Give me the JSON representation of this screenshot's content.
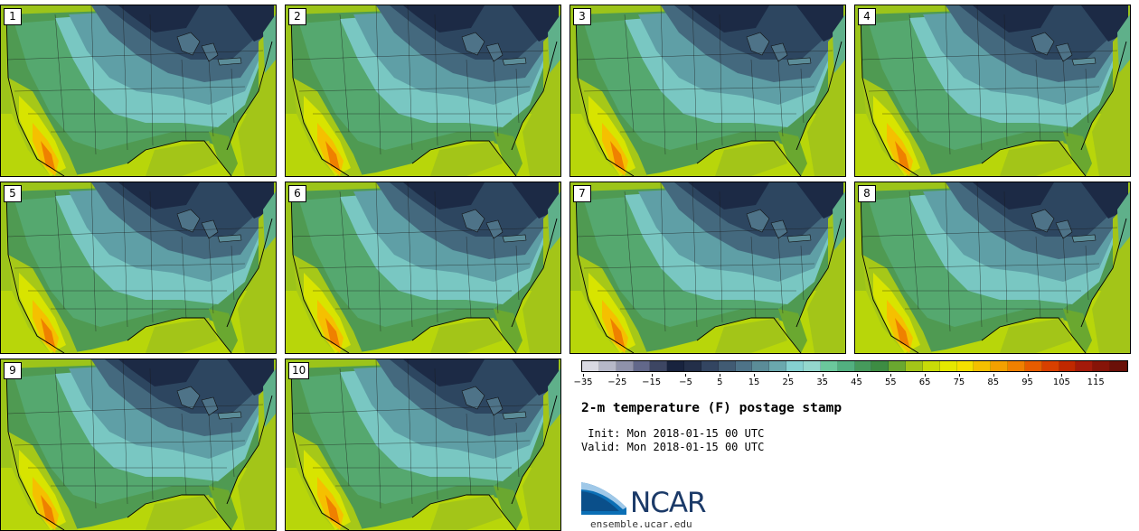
{
  "panels": [
    {
      "label": "1"
    },
    {
      "label": "2"
    },
    {
      "label": "3"
    },
    {
      "label": "4"
    },
    {
      "label": "5"
    },
    {
      "label": "6"
    },
    {
      "label": "7"
    },
    {
      "label": "8"
    },
    {
      "label": "9"
    },
    {
      "label": "10"
    }
  ],
  "colorbar": {
    "colors": [
      "#d9d9e2",
      "#b6b8c8",
      "#8f92aa",
      "#62688a",
      "#3d4663",
      "#18233e",
      "#232f49",
      "#334561",
      "#415b73",
      "#4e7388",
      "#5b8c98",
      "#6aa8ad",
      "#85d0d0",
      "#94d7cd",
      "#6bc89c",
      "#52b080",
      "#469a5c",
      "#3d8c43",
      "#6aa830",
      "#a3c518",
      "#c8dc08",
      "#e5e800",
      "#f5e000",
      "#f5c000",
      "#f3a000",
      "#ef8000",
      "#e65c00",
      "#d84000",
      "#c02800",
      "#a31a0a",
      "#861408",
      "#6a1008"
    ],
    "ticks": [
      "−35",
      "−25",
      "−15",
      "−5",
      "5",
      "15",
      "25",
      "35",
      "45",
      "55",
      "65",
      "75",
      "85",
      "95",
      "105",
      "115"
    ]
  },
  "title": "2-m temperature (F) postage stamp",
  "init_line": " Init: Mon 2018-01-15 00 UTC",
  "valid_line": "Valid: Mon 2018-01-15 00 UTC",
  "logo": {
    "text": "NCAR",
    "url": "ensemble.ucar.edu"
  }
}
